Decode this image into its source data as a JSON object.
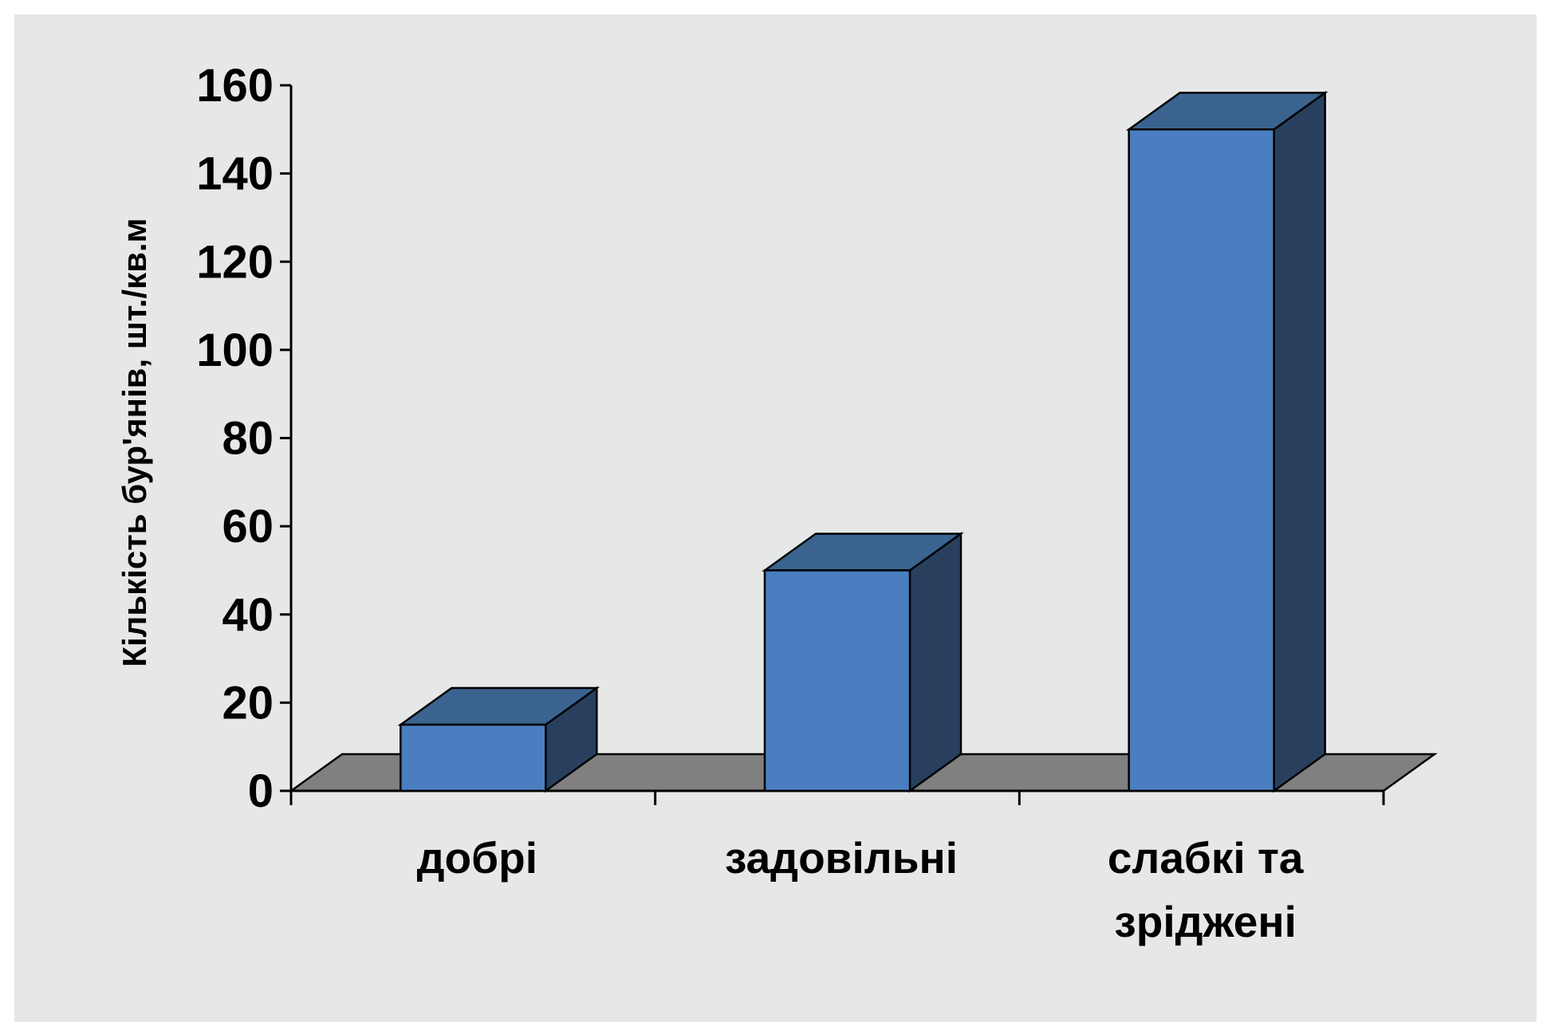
{
  "chart_data": {
    "type": "bar",
    "three_d": true,
    "categories": [
      "добрі",
      "задовільні",
      "слабкі та зріджені"
    ],
    "category_lines": [
      [
        "добрі"
      ],
      [
        "задовільні"
      ],
      [
        "слабкі та",
        "зріджені"
      ]
    ],
    "values": [
      15,
      50,
      150
    ],
    "title": "",
    "xlabel": "",
    "ylabel": "Кількість бур'янів, шт./кв.м",
    "ylim": [
      0,
      160
    ],
    "yticks": [
      0,
      20,
      40,
      60,
      80,
      100,
      120,
      140,
      160
    ],
    "grid": false,
    "legend": "none"
  },
  "colors": {
    "background": "#e6e8e7",
    "bar_front": "#4a7ec0",
    "bar_top": "#3a6390",
    "bar_side": "#28405e",
    "floor": "#808080",
    "axis": "#000000"
  }
}
